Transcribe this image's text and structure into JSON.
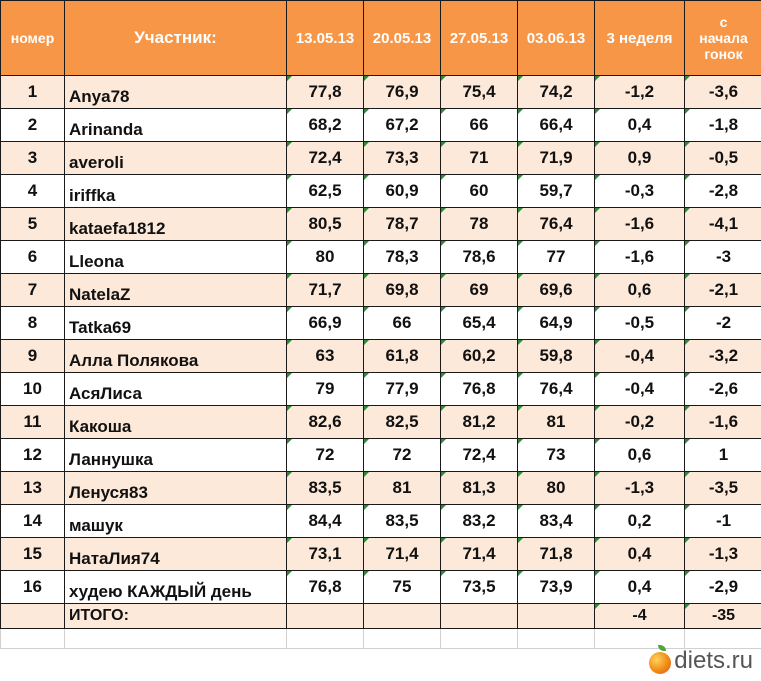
{
  "headers": {
    "num": "номер",
    "participant": "Участник:",
    "d1": "13.05.13",
    "d2": "20.05.13",
    "d3": "27.05.13",
    "d4": "03.06.13",
    "week3": "3 неделя",
    "since_line1": "с",
    "since_line2": "начала",
    "since_line3": "гонок"
  },
  "rows": [
    {
      "num": "1",
      "name": "Anya78",
      "d1": "77,8",
      "d2": "76,9",
      "d3": "75,4",
      "d4": "74,2",
      "week": "-1,2",
      "since": "-3,6"
    },
    {
      "num": "2",
      "name": "Arinanda",
      "d1": "68,2",
      "d2": "67,2",
      "d3": "66",
      "d4": "66,4",
      "week": "0,4",
      "since": "-1,8"
    },
    {
      "num": "3",
      "name": "averoli",
      "d1": "72,4",
      "d2": "73,3",
      "d3": "71",
      "d4": "71,9",
      "week": "0,9",
      "since": "-0,5"
    },
    {
      "num": "4",
      "name": "iriffka",
      "d1": "62,5",
      "d2": "60,9",
      "d3": "60",
      "d4": "59,7",
      "week": "-0,3",
      "since": "-2,8"
    },
    {
      "num": "5",
      "name": "kataefa1812",
      "d1": "80,5",
      "d2": "78,7",
      "d3": "78",
      "d4": "76,4",
      "week": "-1,6",
      "since": "-4,1"
    },
    {
      "num": "6",
      "name": "Lleona",
      "d1": "80",
      "d2": "78,3",
      "d3": "78,6",
      "d4": "77",
      "week": "-1,6",
      "since": "-3"
    },
    {
      "num": "7",
      "name": "NatelaZ",
      "d1": "71,7",
      "d2": "69,8",
      "d3": "69",
      "d4": "69,6",
      "week": "0,6",
      "since": "-2,1"
    },
    {
      "num": "8",
      "name": "Tatka69",
      "d1": "66,9",
      "d2": "66",
      "d3": "65,4",
      "d4": "64,9",
      "week": "-0,5",
      "since": "-2"
    },
    {
      "num": "9",
      "name": "Алла Полякова",
      "d1": "63",
      "d2": "61,8",
      "d3": "60,2",
      "d4": "59,8",
      "week": "-0,4",
      "since": "-3,2"
    },
    {
      "num": "10",
      "name": "АсяЛиса",
      "d1": "79",
      "d2": "77,9",
      "d3": "76,8",
      "d4": "76,4",
      "week": "-0,4",
      "since": "-2,6"
    },
    {
      "num": "11",
      "name": "Какоша",
      "d1": "82,6",
      "d2": "82,5",
      "d3": "81,2",
      "d4": "81",
      "week": "-0,2",
      "since": "-1,6"
    },
    {
      "num": "12",
      "name": "Ланнушка",
      "d1": "72",
      "d2": "72",
      "d3": "72,4",
      "d4": "73",
      "week": "0,6",
      "since": "1"
    },
    {
      "num": "13",
      "name": "Ленуся83",
      "d1": "83,5",
      "d2": "81",
      "d3": "81,3",
      "d4": "80",
      "week": "-1,3",
      "since": "-3,5"
    },
    {
      "num": "14",
      "name": "машук",
      "d1": "84,4",
      "d2": "83,5",
      "d3": "83,2",
      "d4": "83,4",
      "week": "0,2",
      "since": "-1"
    },
    {
      "num": "15",
      "name": "НатаЛия74",
      "d1": "73,1",
      "d2": "71,4",
      "d3": "71,4",
      "d4": "71,8",
      "week": "0,4",
      "since": "-1,3"
    },
    {
      "num": "16",
      "name": "худею КАЖДЫЙ день",
      "d1": "76,8",
      "d2": "75",
      "d3": "73,5",
      "d4": "73,9",
      "week": "0,4",
      "since": "-2,9"
    }
  ],
  "total": {
    "label": "ИТОГО:",
    "week": "-4",
    "since": "-35"
  },
  "logo": {
    "text": "diets.ru",
    "icon": "apple-icon"
  },
  "colors": {
    "header_bg": "#F79646",
    "band_bg": "#FDE9D9",
    "indicator": "#2E8B3A"
  }
}
